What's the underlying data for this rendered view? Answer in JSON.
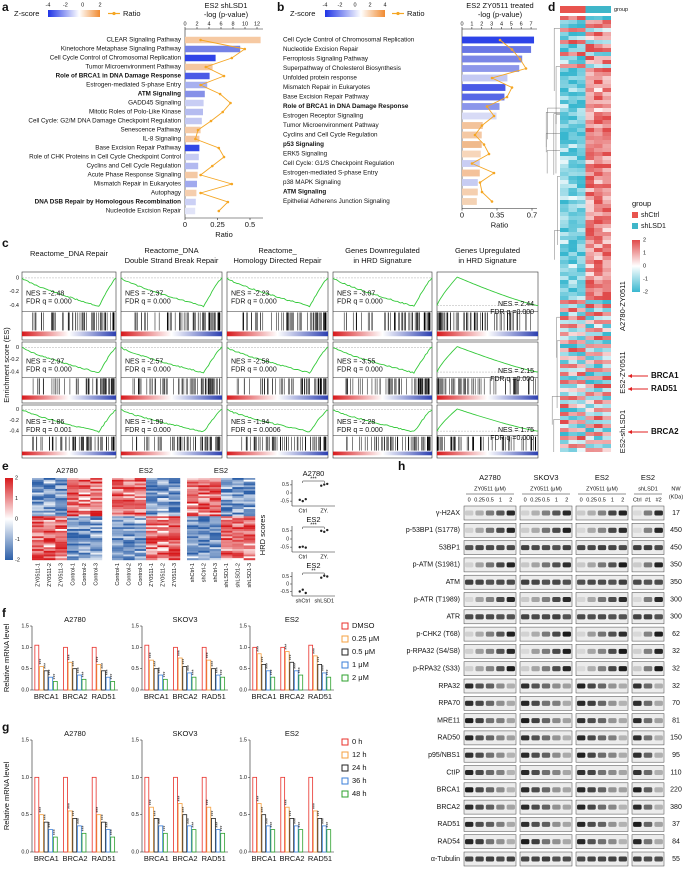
{
  "panel_a": {
    "letter": "a",
    "zscore_label": "Z-score",
    "zscore_ticks": [
      -4,
      -2,
      0,
      2
    ],
    "ratio_legend": "Ratio",
    "title": "ES2 shLSD1",
    "subtitle": "-log (p-value)",
    "top_lim": [
      0,
      13
    ],
    "top_ticks": [
      0,
      2,
      4,
      6,
      8,
      10,
      12
    ],
    "bottom_lim": [
      0,
      0.6
    ],
    "bottom_ticks": [
      0,
      0.25,
      0.5
    ],
    "x_label": "Ratio",
    "line_color": "#f5a623",
    "pathways": [
      {
        "name": "CLEAR Signaling Pathway",
        "logp": 12.6,
        "ratio": 0.12,
        "color": "#f6c9a2"
      },
      {
        "name": "Kinetochore Metaphase Signaling Pathway",
        "logp": 9.2,
        "ratio": 0.46,
        "color": "#7582e6"
      },
      {
        "name": "Cell Cycle Control of Chromosomal Replication",
        "logp": 5.1,
        "ratio": 0.36,
        "color": "#2f43e7"
      },
      {
        "name": "Tumor Microenvironment Pathway",
        "logp": 4.6,
        "ratio": 0.16,
        "color": "#f4c7a0"
      },
      {
        "name": "Role of BRCA1 in DNA Damage Response",
        "bold": true,
        "logp": 4.1,
        "ratio": 0.3,
        "color": "#4a5ae6"
      },
      {
        "name": "Estrogen-mediated S-phase Entry",
        "logp": 3.7,
        "ratio": 0.12,
        "color": "#a7b0ef"
      },
      {
        "name": "ATM Signaling",
        "bold": true,
        "logp": 3.3,
        "ratio": 0.27,
        "color": "#8690e8"
      },
      {
        "name": "GADD45 Signaling",
        "logp": 3.1,
        "ratio": 0.35,
        "color": "#c8cdf4"
      },
      {
        "name": "Mitotic Roles of Polo-Like Kinase",
        "logp": 3.0,
        "ratio": 0.29,
        "color": "#b5bcf0"
      },
      {
        "name": "Cell Cycle: G2/M DNA Damage Checkpoint Regulation",
        "logp": 2.8,
        "ratio": 0.2,
        "color": "#c3c8f2"
      },
      {
        "name": "Senescence Pathway",
        "logp": 2.6,
        "ratio": 0.1,
        "color": "#f5caa5"
      },
      {
        "name": "IL-8 Signaling",
        "logp": 2.4,
        "ratio": 0.08,
        "color": "#f4c59f"
      },
      {
        "name": "Base Excision Repair Pathway",
        "logp": 2.4,
        "ratio": 0.26,
        "color": "#3246e6"
      },
      {
        "name": "Role of CHK Proteins in Cell Cycle Checkpoint Control",
        "logp": 2.3,
        "ratio": 0.3,
        "color": "#c6cbf3"
      },
      {
        "name": "Cyclins and Cell Cycle Regulation",
        "logp": 2.2,
        "ratio": 0.21,
        "color": "#b2b9f0"
      },
      {
        "name": "Acute Phase Response Signaling",
        "logp": 2.1,
        "ratio": 0.12,
        "color": "#f4c9a4"
      },
      {
        "name": "Mismatch Repair in Eukaryotes",
        "logp": 2.0,
        "ratio": 0.36,
        "color": "#a0a9ee"
      },
      {
        "name": "Autophagy",
        "logp": 1.9,
        "ratio": 0.12,
        "color": "#f5ceae"
      },
      {
        "name": "DNA DSB Repair by Homologous Recombination",
        "bold": true,
        "logp": 1.8,
        "ratio": 0.33,
        "color": "#cbd0f5"
      },
      {
        "name": "Nucleotide Excision Repair",
        "logp": 1.7,
        "ratio": 0.26,
        "color": "#e1e4f8"
      }
    ]
  },
  "panel_b": {
    "letter": "b",
    "zscore_label": "Z-score",
    "zscore_ticks": [
      -4,
      -2,
      0,
      2,
      4
    ],
    "ratio_legend": "Ratio",
    "title": "ES2 ZY0511 treated",
    "subtitle": "-log (p-value)",
    "top_lim": [
      0,
      7.6
    ],
    "top_ticks": [
      0,
      1,
      2,
      3,
      4,
      5,
      6,
      7
    ],
    "bottom_lim": [
      0,
      0.75
    ],
    "bottom_ticks": [
      0,
      0.35,
      0.7
    ],
    "x_label": "Ratio",
    "line_color": "#f5a623",
    "pathways": [
      {
        "name": "Cell Cycle Control of Chromosomal Replication",
        "logp": 7.3,
        "ratio": 0.38,
        "color": "#2d43e8"
      },
      {
        "name": "Nucleotide Excision Repair",
        "logp": 7.0,
        "ratio": 0.5,
        "color": "#6977e5"
      },
      {
        "name": "Ferroptosis Signaling Pathway",
        "logp": 6.1,
        "ratio": 0.58,
        "color": "#7a86e6"
      },
      {
        "name": "Superpathway of Cholesterol Biosynthesis",
        "logp": 5.8,
        "ratio": 0.64,
        "color": "#8d97ea"
      },
      {
        "name": "Unfolded protein response",
        "logp": 4.6,
        "ratio": 0.3,
        "color": "#c5caf3"
      },
      {
        "name": "Mismatch Repair in Eukaryotes",
        "logp": 4.4,
        "ratio": 0.5,
        "color": "#4a5ae6"
      },
      {
        "name": "Base Excision Repair Pathway",
        "logp": 4.3,
        "ratio": 0.45,
        "color": "#5867e6"
      },
      {
        "name": "Role of BRCA1 in DNA Damage Response",
        "bold": true,
        "logp": 3.8,
        "ratio": 0.25,
        "color": "#8c96ea"
      },
      {
        "name": "Estrogen Receptor Signaling",
        "logp": 3.5,
        "ratio": 0.32,
        "color": "#d8dbf6"
      },
      {
        "name": "Tumor Microenvironment Pathway",
        "logp": 2.1,
        "ratio": 0.2,
        "color": "#f3c39a"
      },
      {
        "name": "Cyclins and Cell Cycle Regulation",
        "logp": 2.0,
        "ratio": 0.13,
        "color": "#f4c8a3"
      },
      {
        "name": "p53 Signaling",
        "bold": true,
        "logp": 2.0,
        "ratio": 0.22,
        "color": "#f0ba8c"
      },
      {
        "name": "ERK5 Signaling",
        "logp": 1.9,
        "ratio": 0.27,
        "color": "#f7d6ba"
      },
      {
        "name": "Cell Cycle: G1/S Checkpoint Regulation",
        "logp": 1.8,
        "ratio": 0.1,
        "color": "#c9cdf3"
      },
      {
        "name": "Estrogen-mediated S-phase Entry",
        "logp": 1.8,
        "ratio": 0.32,
        "color": "#f4c29b"
      },
      {
        "name": "p38 MAPK Signaling",
        "logp": 1.6,
        "ratio": 0.18,
        "color": "#c7ccf2"
      },
      {
        "name": "ATM Signaling",
        "bold": true,
        "logp": 1.6,
        "ratio": 0.2,
        "color": "#f5cfaf"
      },
      {
        "name": "Epithelial Adherens Junction Signaling",
        "logp": 1.5,
        "ratio": 0.3,
        "color": "#f4d2b4"
      }
    ]
  },
  "panel_c": {
    "letter": "c",
    "y_label": "Enrichment score (ES)",
    "titles": [
      [
        "Reactome_DNA Repair"
      ],
      [
        "Reactome_DNA",
        "Double Strand Break Repair"
      ],
      [
        "Reactome_",
        "Homology Directed Repair"
      ],
      [
        "Genes Downregulated",
        "in HRD Signature"
      ],
      [
        "Genes Upregulated",
        "in HRD Signature"
      ]
    ],
    "row_labels": [
      "A2780-ZY0511",
      "ES2-ZY0511",
      "ES2-shLSD1"
    ],
    "rows": [
      {
        "yticks": [
          "0",
          "-0.2",
          "-0.4"
        ],
        "cells": [
          [
            "NES = -2.48",
            "FDR q = 0.000"
          ],
          [
            "NES = -2.37",
            "FDR q = 0.000"
          ],
          [
            "NES = -2.23",
            "FDR q = 0.000"
          ],
          [
            "NES = -3.07",
            "FDR q = 0.000"
          ],
          [
            "NES = 2.44",
            "FDR q =0.000"
          ]
        ]
      },
      {
        "yticks": [
          "0",
          "-0.2",
          "-0.4"
        ],
        "cells": [
          [
            "NES = -2.97",
            "FDR q = 0.000"
          ],
          [
            "NES = -2.57",
            "FDR q = 0.000"
          ],
          [
            "NES = -2.58",
            "FDR q = 0.000"
          ],
          [
            "NES = -3.55",
            "FDR q = 0.000"
          ],
          [
            "NES = 2.15",
            "FDR q =0.000"
          ]
        ]
      },
      {
        "yticks": [
          "0",
          "-0.2",
          "-0.4"
        ],
        "cells": [
          [
            "NES = -1.86",
            "FDR q = 0.001"
          ],
          [
            "NES = -1.99",
            "FDR q = 0.000"
          ],
          [
            "NES = -1.94",
            "FDR q = 0.0006"
          ],
          [
            "NES = -2.28",
            "FDR q = 0.000"
          ],
          [
            "NES = 1.75",
            "FDR q =0.000"
          ]
        ]
      }
    ]
  },
  "panel_d": {
    "letter": "d",
    "group_header": "group",
    "legend_title": "group",
    "groups": [
      {
        "name": "shCtrl",
        "color": "#e8544e"
      },
      {
        "name": "shLSD1",
        "color": "#3fb6c9"
      }
    ],
    "scale_ticks": [
      2,
      1,
      0,
      -1,
      -2
    ],
    "highlighted_genes": [
      "BRCA1",
      "RAD51",
      "BRCA2"
    ]
  },
  "panel_e": {
    "letter": "e",
    "colorbar_ticks": [
      2,
      1,
      0,
      -1,
      -2
    ],
    "heatmaps": [
      {
        "title": "A2780",
        "samples": [
          "ZY0511-1",
          "ZY0511-2",
          "ZY0511-3",
          "Control-1",
          "Control-2",
          "Control-3"
        ]
      },
      {
        "title": "ES2",
        "samples": [
          "Control-1",
          "Control-2",
          "Control-3",
          "ZY0511-1",
          "ZY0511-2",
          "ZY0511-3"
        ]
      },
      {
        "title": "ES2",
        "samples": [
          "shCtrl-1",
          "shCtrl-2",
          "shCtrl-3",
          "shLSD1-1",
          "shLSD1-2",
          "shLSD1-3"
        ]
      }
    ],
    "hrd_y_label": "HRD scores",
    "hrd_ylim": [
      -0.8,
      0.8
    ],
    "hrd_yticks": [
      -0.5,
      0,
      0.5
    ],
    "hrd": [
      {
        "title": "A2780",
        "groups": [
          "Ctrl",
          "ZY."
        ],
        "values": [
          [
            -0.42,
            -0.5,
            -0.38
          ],
          [
            0.45,
            0.52,
            0.56
          ]
        ],
        "sig": "***"
      },
      {
        "title": "ES2",
        "groups": [
          "Ctrl",
          "ZY."
        ],
        "values": [
          [
            -0.5,
            -0.47,
            -0.53
          ],
          [
            0.5,
            0.44,
            0.55
          ]
        ],
        "sig": "***"
      },
      {
        "title": "ES2",
        "groups": [
          "shCtrl",
          "shLSD1"
        ],
        "values": [
          [
            -0.5,
            -0.38,
            -0.6
          ],
          [
            0.42,
            0.55,
            0.5
          ]
        ],
        "sig": "**"
      }
    ]
  },
  "panel_f": {
    "letter": "f",
    "y_label": "Relative mRNA level",
    "ylim": [
      0,
      1.5
    ],
    "yticks": [
      {
        "value": 0,
        "label": "0.0"
      },
      {
        "value": 0.5,
        "label": "0.5"
      },
      {
        "value": 1,
        "label": "1.0"
      },
      {
        "value": 1.5,
        "label": "1.5"
      }
    ],
    "genes": [
      "BRCA1",
      "BRCA2",
      "RAD51"
    ],
    "conditions": [
      {
        "name": "DMSO",
        "color": "#e8312b"
      },
      {
        "name": "0.25 μM",
        "color": "#f5a040"
      },
      {
        "name": "0.5 μM",
        "color": "#222222"
      },
      {
        "name": "1 μM",
        "color": "#3b7fd9"
      },
      {
        "name": "2 μM",
        "color": "#2ca02c"
      }
    ],
    "sig": [
      null,
      "***",
      "***",
      "***",
      "***"
    ],
    "charts": [
      {
        "title": "A2780",
        "values": [
          [
            1.05,
            0.55,
            0.45,
            0.3,
            0.2
          ],
          [
            1.0,
            0.65,
            0.5,
            0.35,
            0.25
          ],
          [
            1.0,
            0.6,
            0.45,
            0.3,
            0.2
          ]
        ]
      },
      {
        "title": "SKOV3",
        "values": [
          [
            1.05,
            0.7,
            0.5,
            0.35,
            0.25
          ],
          [
            1.0,
            0.75,
            0.55,
            0.4,
            0.3
          ],
          [
            1.0,
            0.7,
            0.5,
            0.35,
            0.3
          ]
        ]
      },
      {
        "title": "ES2",
        "values": [
          [
            1.0,
            0.85,
            0.6,
            0.45,
            0.3
          ],
          [
            1.0,
            0.9,
            0.65,
            0.45,
            0.35
          ],
          [
            1.05,
            0.8,
            0.6,
            0.4,
            0.3
          ]
        ]
      }
    ]
  },
  "panel_g": {
    "letter": "g",
    "y_label": "Relative mRNA level",
    "ylim": [
      0,
      1.5
    ],
    "yticks": [
      {
        "value": 0,
        "label": "0.0"
      },
      {
        "value": 0.5,
        "label": "0.5"
      },
      {
        "value": 1,
        "label": "1.0"
      },
      {
        "value": 1.5,
        "label": "1.5"
      }
    ],
    "genes": [
      "BRCA1",
      "BRCA2",
      "RAD51"
    ],
    "conditions": [
      {
        "name": "0 h",
        "color": "#e8312b"
      },
      {
        "name": "12 h",
        "color": "#f5a040"
      },
      {
        "name": "24 h",
        "color": "#222222"
      },
      {
        "name": "36 h",
        "color": "#3b7fd9"
      },
      {
        "name": "48 h",
        "color": "#2ca02c"
      }
    ],
    "sig": [
      null,
      "***",
      "***",
      "***",
      "***"
    ],
    "charts": [
      {
        "title": "A2780",
        "values": [
          [
            1.0,
            0.5,
            0.4,
            0.3,
            0.2
          ],
          [
            1.0,
            0.55,
            0.45,
            0.35,
            0.25
          ],
          [
            1.0,
            0.5,
            0.4,
            0.3,
            0.2
          ]
        ]
      },
      {
        "title": "SKOV3",
        "values": [
          [
            1.0,
            0.6,
            0.45,
            0.35,
            0.25
          ],
          [
            1.0,
            0.65,
            0.5,
            0.35,
            0.3
          ],
          [
            1.0,
            0.6,
            0.45,
            0.3,
            0.25
          ]
        ]
      },
      {
        "title": "ES2",
        "values": [
          [
            1.0,
            0.65,
            0.5,
            0.35,
            0.3
          ],
          [
            1.0,
            0.6,
            0.45,
            0.35,
            0.3
          ],
          [
            1.0,
            0.55,
            0.45,
            0.35,
            0.3
          ]
        ]
      }
    ]
  },
  "panel_h": {
    "letter": "h",
    "nw_label": [
      "NW",
      "(KDa)"
    ],
    "groups": [
      {
        "cell": "A2780",
        "treatment": "ZY0511 (μM)",
        "lanes": [
          "0",
          "0.25",
          "0.5",
          "1",
          "2"
        ]
      },
      {
        "cell": "SKOV3",
        "treatment": "ZY0511 (μM)",
        "lanes": [
          "0",
          "0.25",
          "0.5",
          "1",
          "2"
        ]
      },
      {
        "cell": "ES2",
        "treatment": "ZY0511 (μM)",
        "lanes": [
          "0",
          "0.25",
          "0.5",
          "1",
          "2"
        ]
      },
      {
        "cell": "ES2",
        "treatment": "shLSD1",
        "lanes": [
          "Ctrl",
          "#1",
          "#2"
        ]
      }
    ],
    "proteins": [
      {
        "name": "γ-H2AX",
        "kda": 17
      },
      {
        "name": "p-53BP1 (S1778)",
        "kda": 450
      },
      {
        "name": "53BP1",
        "kda": 450
      },
      {
        "name": "p-ATM (S1981)",
        "kda": 350
      },
      {
        "name": "ATM",
        "kda": 350
      },
      {
        "name": "p-ATR (T1989)",
        "kda": 300
      },
      {
        "name": "ATR",
        "kda": 300
      },
      {
        "name": "p-CHK2 (T68)",
        "kda": 62
      },
      {
        "name": "p-RPA32 (S4/S8)",
        "kda": 32
      },
      {
        "name": "p-RPA32 (S33)",
        "kda": 32
      },
      {
        "name": "RPA32",
        "kda": 32
      },
      {
        "name": "RPA70",
        "kda": 70
      },
      {
        "name": "MRE11",
        "kda": 81
      },
      {
        "name": "RAD50",
        "kda": 150
      },
      {
        "name": "p95/NBS1",
        "kda": 95
      },
      {
        "name": "CtIP",
        "kda": 110
      },
      {
        "name": "BRCA1",
        "kda": 220
      },
      {
        "name": "BRCA2",
        "kda": 380
      },
      {
        "name": "RAD51",
        "kda": 37
      },
      {
        "name": "RAD54",
        "kda": 84
      },
      {
        "name": "α-Tubulin",
        "kda": 55
      }
    ]
  }
}
